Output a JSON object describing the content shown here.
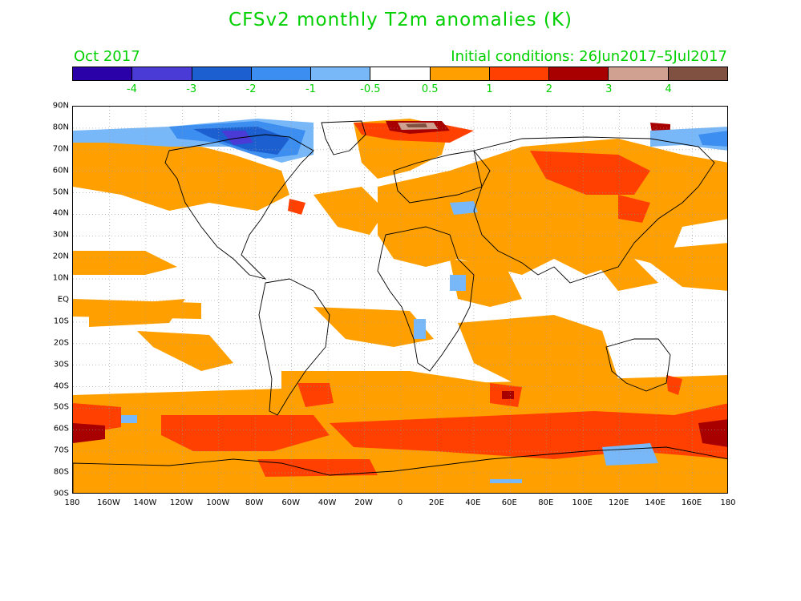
{
  "title": "CFSv2 monthly T2m anomalies (K)",
  "month": "Oct 2017",
  "initial_conditions": "Initial conditions: 26Jun2017–5Jul2017",
  "colorbar": {
    "colors": [
      "#2a00a8",
      "#4a3ad6",
      "#1c5fd0",
      "#3c8ef0",
      "#78b8f8",
      "#ffffff",
      "#ffa000",
      "#ff4000",
      "#a80000",
      "#d0a090",
      "#805040"
    ],
    "labels": [
      "-4",
      "-3",
      "-2",
      "-1",
      "-0.5",
      "0.5",
      "1",
      "2",
      "3",
      "4"
    ]
  },
  "lat_labels": [
    "90N",
    "80N",
    "70N",
    "60N",
    "50N",
    "40N",
    "30N",
    "20N",
    "10N",
    "EQ",
    "10S",
    "20S",
    "30S",
    "40S",
    "50S",
    "60S",
    "70S",
    "80S",
    "90S"
  ],
  "lon_labels": [
    "180",
    "160W",
    "140W",
    "120W",
    "100W",
    "80W",
    "60W",
    "40W",
    "20W",
    "0",
    "20E",
    "40E",
    "60E",
    "80E",
    "100E",
    "120E",
    "140E",
    "160E",
    "180"
  ],
  "colors": {
    "text": "#00d000",
    "warm_1": "#ffa000",
    "warm_2": "#ff4000",
    "warm_3": "#a80000",
    "warm_4": "#d0a090",
    "warm_5": "#805040",
    "cool_1": "#78b8f8",
    "cool_2": "#3c8ef0",
    "cool_3": "#1c5fd0",
    "cool_4": "#4a3ad6"
  }
}
